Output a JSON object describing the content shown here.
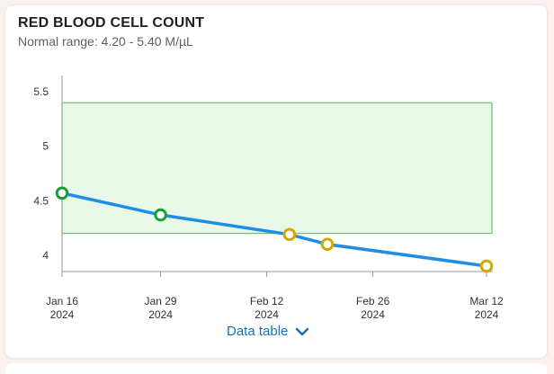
{
  "card": {
    "title": "RED BLOOD CELL COUNT",
    "subtitle": "Normal range: 4.20 - 5.40 M/µL",
    "data_table_label": "Data table",
    "icon": "chevron-down-icon"
  },
  "colors": {
    "line": "#1f8de6",
    "normal_point": "#1a9e3a",
    "low_point": "#d4a800",
    "band_fill": "#e8f8e8",
    "band_stroke": "#6cc06c",
    "link": "#1a6fb8"
  },
  "chart_data": {
    "type": "line",
    "title": "RED BLOOD CELL COUNT",
    "ylabel": "M/µL",
    "ylim": [
      3.85,
      5.65
    ],
    "yticks": [
      {
        "v": 4,
        "label": "4"
      },
      {
        "v": 4.5,
        "label": "4.5"
      },
      {
        "v": 5,
        "label": "5"
      },
      {
        "v": 5.5,
        "label": "5.5"
      }
    ],
    "x_start": "2024-01-16",
    "x_end": "2024-03-12",
    "xticks": [
      {
        "d": 0,
        "month": "Jan 16",
        "year": "2024"
      },
      {
        "d": 13,
        "month": "Jan 29",
        "year": "2024"
      },
      {
        "d": 27,
        "month": "Feb 12",
        "year": "2024"
      },
      {
        "d": 41,
        "month": "Feb 26",
        "year": "2024"
      },
      {
        "d": 56,
        "month": "Mar 12",
        "year": "2024"
      }
    ],
    "normal_range": [
      4.2,
      5.4
    ],
    "points": [
      {
        "date": "2024-01-16",
        "d": 0,
        "value": 4.57,
        "status": "normal"
      },
      {
        "date": "2024-01-29",
        "d": 13,
        "value": 4.37,
        "status": "normal"
      },
      {
        "date": "2024-02-15",
        "d": 30,
        "value": 4.19,
        "status": "low"
      },
      {
        "date": "2024-02-20",
        "d": 35,
        "value": 4.1,
        "status": "low"
      },
      {
        "date": "2024-03-12",
        "d": 56,
        "value": 3.9,
        "status": "low"
      }
    ]
  }
}
